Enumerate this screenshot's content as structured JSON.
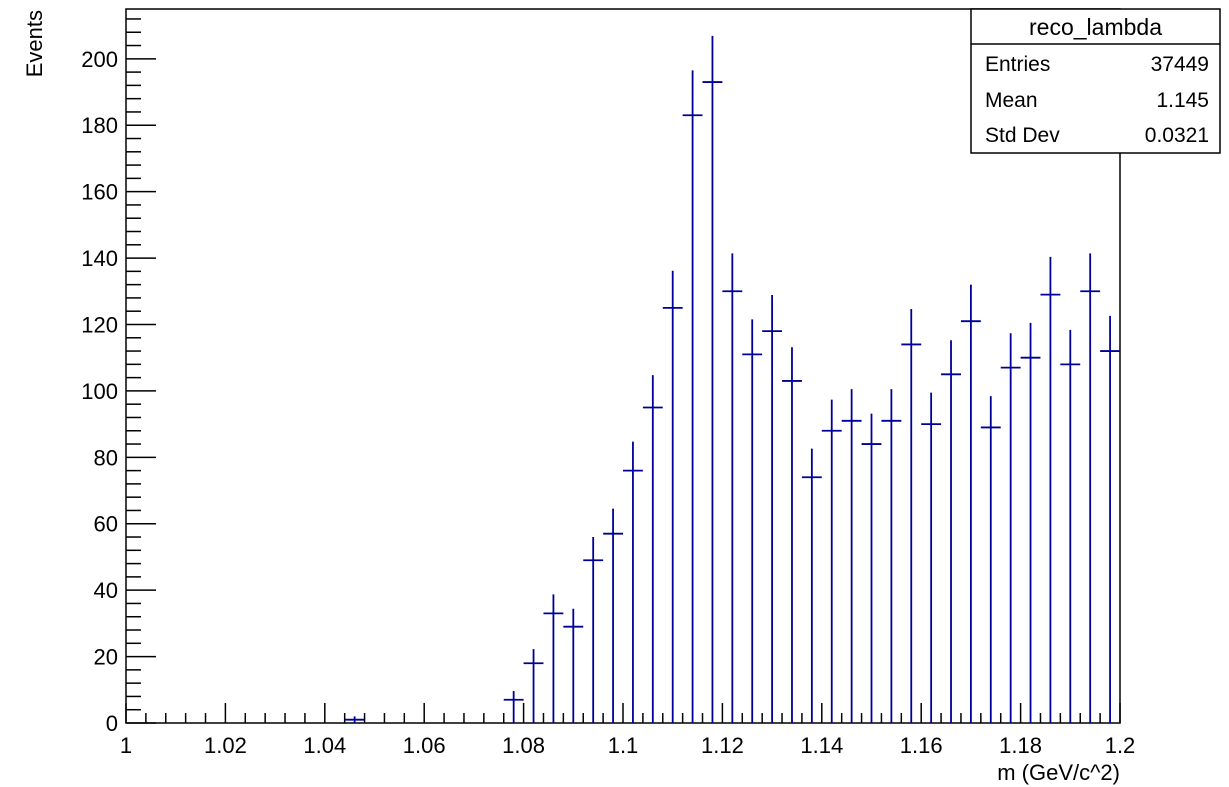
{
  "chart_data": {
    "type": "scatter",
    "style": "histogram-error-bars",
    "xlabel": "m (GeV/c^2)",
    "ylabel": "Events",
    "xlim": [
      1.0,
      1.2
    ],
    "ylim": [
      0,
      215
    ],
    "x_ticks": [
      "1",
      "1.02",
      "1.04",
      "1.06",
      "1.08",
      "1.1",
      "1.12",
      "1.14",
      "1.16",
      "1.18",
      "1.2"
    ],
    "y_ticks": [
      "0",
      "20",
      "40",
      "60",
      "80",
      "100",
      "120",
      "140",
      "160",
      "180",
      "200"
    ],
    "bin_width": 0.004,
    "grid": false,
    "series_color": "#000099",
    "series": [
      {
        "x": [
          1.046,
          1.078,
          1.082,
          1.086,
          1.09,
          1.094,
          1.098,
          1.102,
          1.106,
          1.11,
          1.114,
          1.118,
          1.122,
          1.126,
          1.13,
          1.134,
          1.138,
          1.142,
          1.146,
          1.15,
          1.154,
          1.158,
          1.162,
          1.166,
          1.17,
          1.174,
          1.178,
          1.182,
          1.186,
          1.19,
          1.194,
          1.198
        ],
        "y": [
          1,
          7,
          18,
          33,
          29,
          49,
          57,
          76,
          95,
          125,
          183,
          193,
          130,
          111,
          118,
          103,
          74,
          88,
          91,
          84,
          91,
          114,
          90,
          105,
          121,
          89,
          107,
          110,
          129,
          108,
          130,
          112
        ]
      }
    ],
    "stats_box": {
      "title": "reco_lambda",
      "position": "top-right",
      "rows": [
        {
          "label": "Entries",
          "value": "37449"
        },
        {
          "label": "Mean",
          "value": "1.145"
        },
        {
          "label": "Std Dev",
          "value": "0.0321"
        }
      ]
    }
  }
}
